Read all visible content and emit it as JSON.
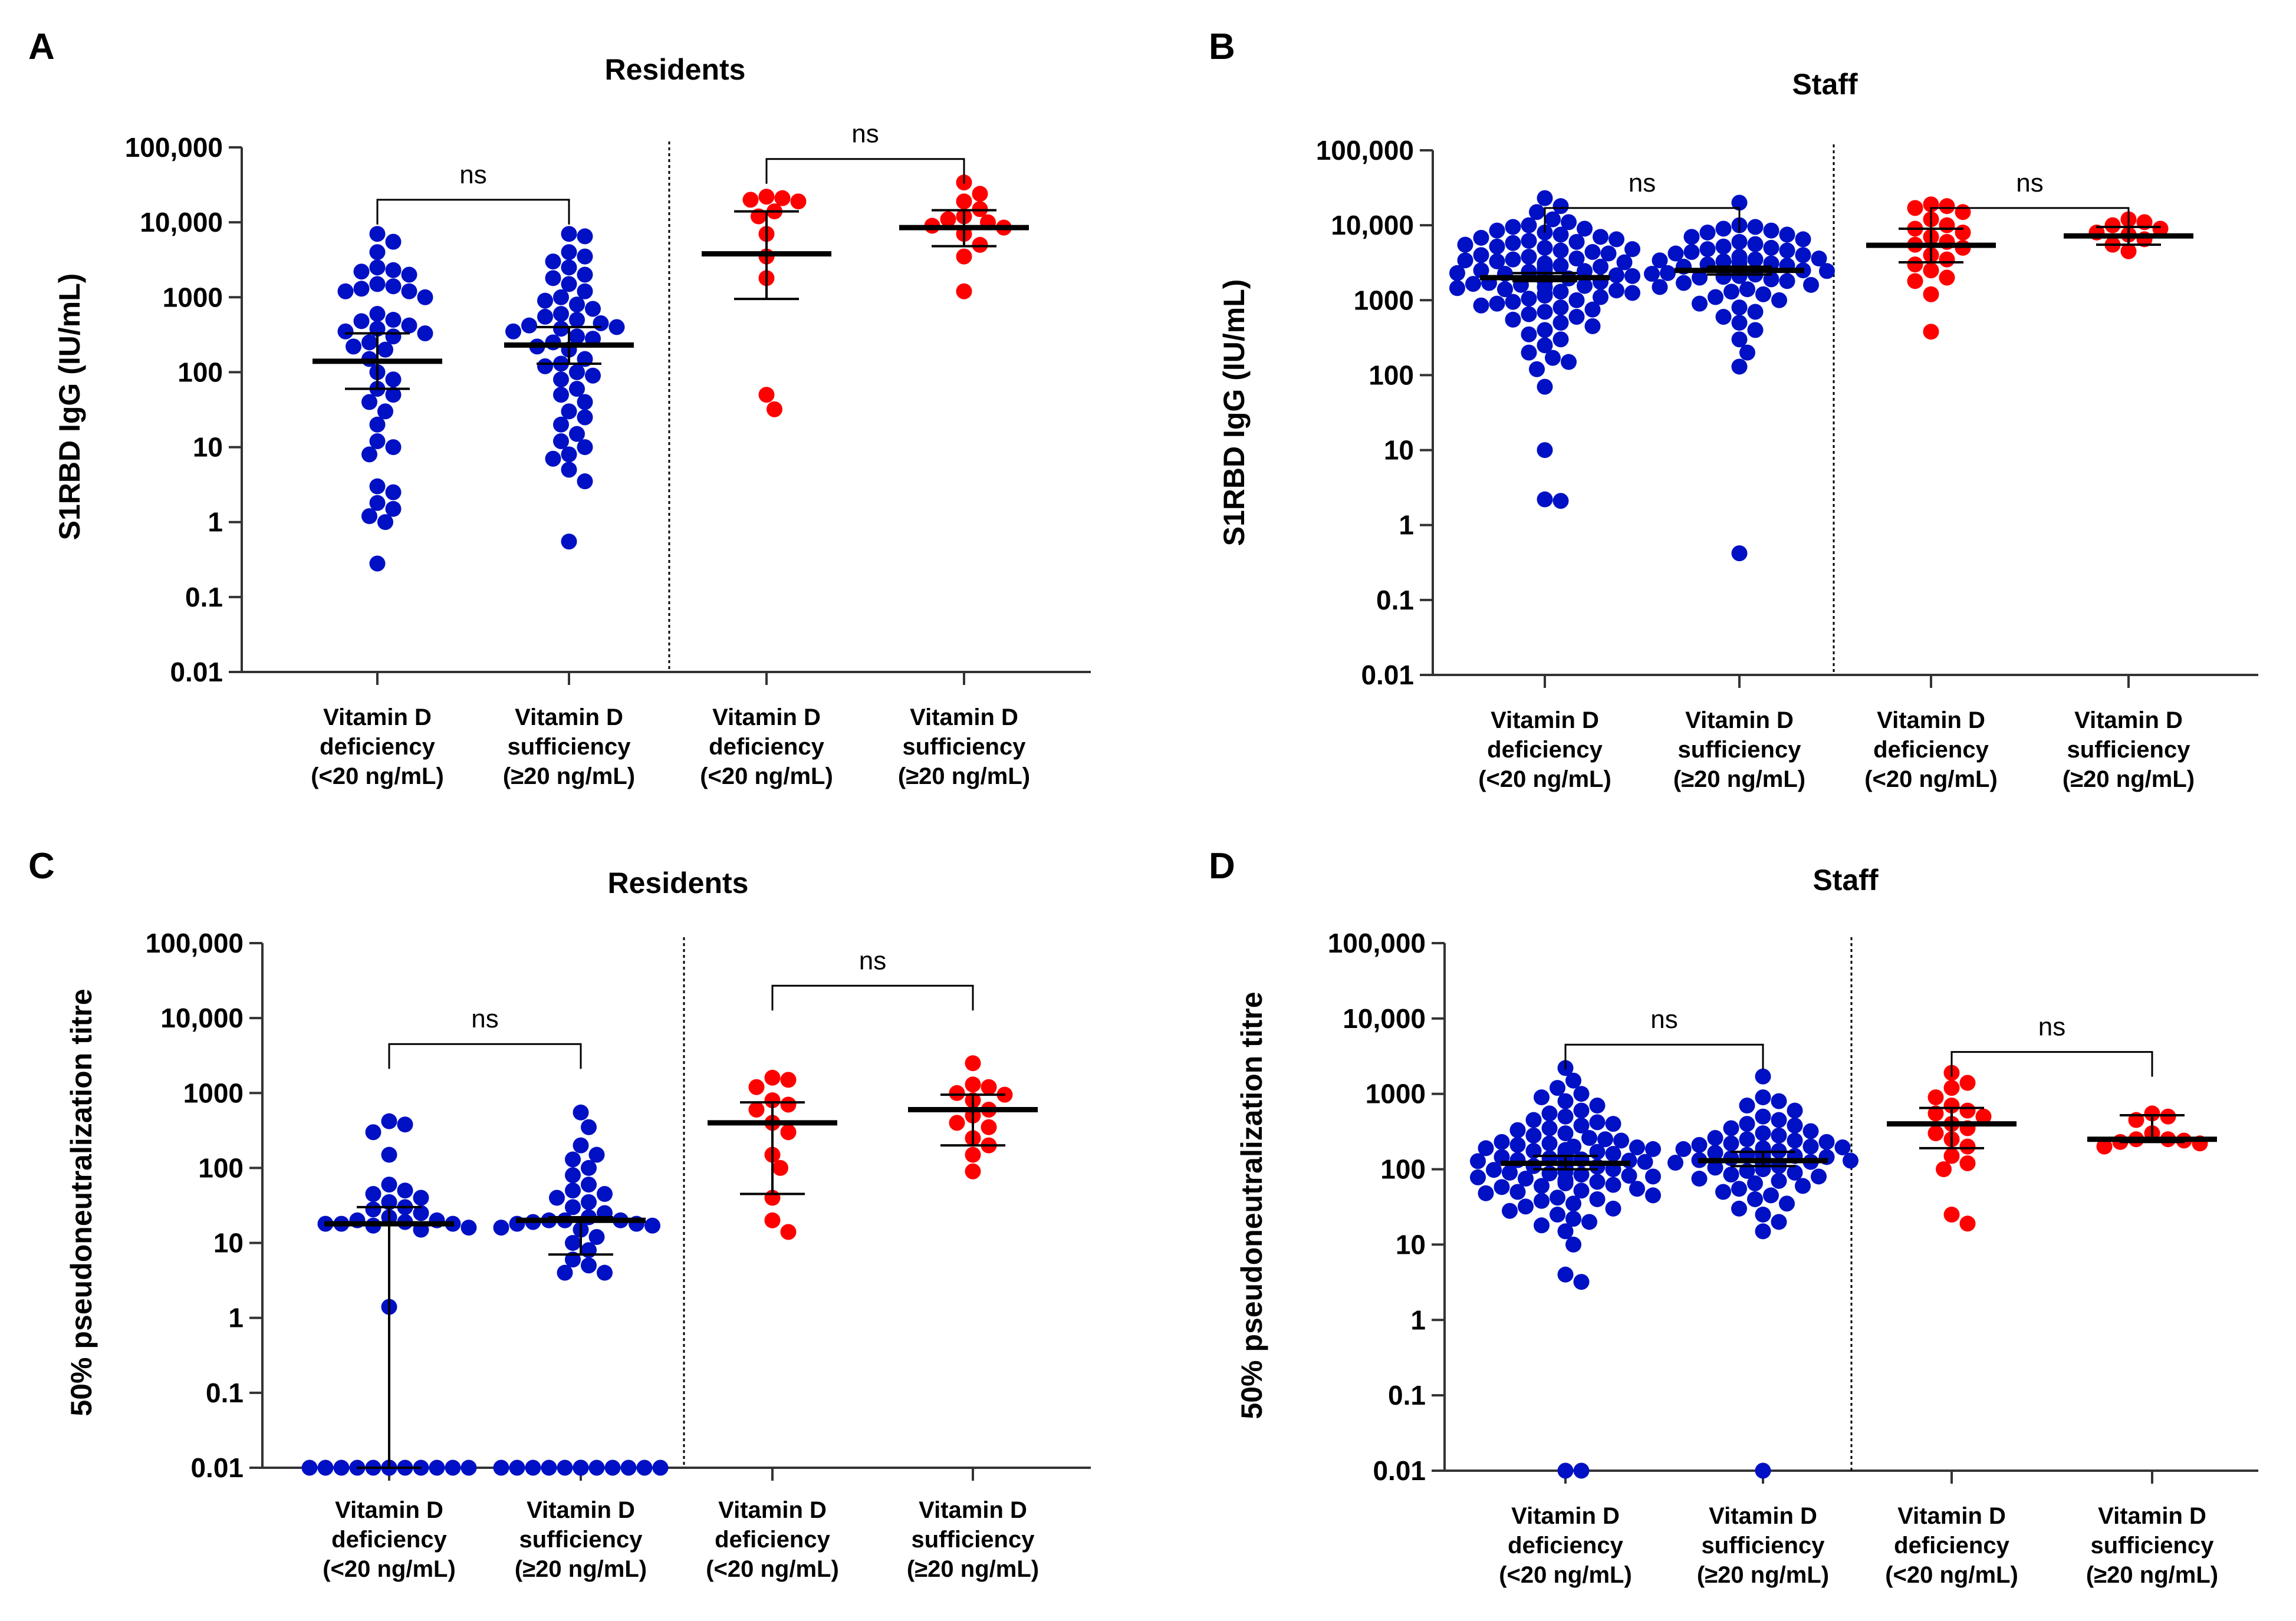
{
  "colors": {
    "blue": "#0010c4",
    "red": "#ff0000",
    "axis": "#333333"
  },
  "chart_data": [
    {
      "label": "A",
      "title": "Residents",
      "type": "scatter",
      "ylabel": "S1RBD IgG (IU/mL)",
      "yscale": "log",
      "ylim": [
        0.01,
        100000
      ],
      "yticks": [
        "0.01",
        "0.1",
        "1",
        "10",
        "100",
        "1000",
        "10,000",
        "100,000"
      ],
      "categories": [
        [
          "Vitamin D",
          "deficiency",
          "(<20 ng/mL)"
        ],
        [
          "Vitamin D",
          "sufficiency",
          "(≥20 ng/mL)"
        ],
        [
          "Vitamin D",
          "deficiency",
          "(<20 ng/mL)"
        ],
        [
          "Vitamin D",
          "sufficiency",
          "(≥20 ng/mL)"
        ]
      ],
      "comparisons": [
        {
          "groups": [
            0,
            1
          ],
          "text": "ns",
          "y": 20000
        },
        {
          "groups": [
            2,
            3
          ],
          "text": "ns",
          "y": 70000
        }
      ],
      "groups": [
        {
          "color": "blue",
          "median": 140,
          "iqr": [
            60,
            330
          ],
          "values": [
            7000,
            5500,
            4000,
            2500,
            2300,
            2200,
            2000,
            1500,
            1400,
            1300,
            1200,
            1200,
            1000,
            600,
            500,
            480,
            420,
            380,
            350,
            330,
            300,
            250,
            220,
            200,
            150,
            100,
            80,
            60,
            50,
            40,
            30,
            20,
            12,
            10,
            8,
            3,
            2.5,
            1.8,
            1.5,
            1.2,
            1,
            0.28
          ]
        },
        {
          "color": "blue",
          "median": 230,
          "iqr": [
            130,
            400
          ],
          "values": [
            7000,
            6500,
            4000,
            3500,
            3000,
            2500,
            2000,
            1800,
            1500,
            1200,
            1000,
            900,
            800,
            700,
            600,
            550,
            500,
            450,
            420,
            400,
            380,
            350,
            300,
            280,
            250,
            220,
            200,
            150,
            130,
            120,
            100,
            90,
            80,
            60,
            50,
            40,
            30,
            25,
            20,
            15,
            12,
            10,
            8,
            7,
            5,
            3.5,
            0.55
          ]
        },
        {
          "color": "red",
          "median": 3800,
          "iqr": [
            950,
            14000
          ],
          "values": [
            22000,
            21000,
            20000,
            19000,
            14000,
            12000,
            7000,
            3500,
            1800,
            50,
            32
          ]
        },
        {
          "color": "red",
          "median": 8500,
          "iqr": [
            4800,
            14500
          ],
          "values": [
            34000,
            24000,
            19000,
            15000,
            12000,
            11000,
            10000,
            9000,
            8500,
            7000,
            5000,
            3500,
            1200
          ]
        }
      ]
    },
    {
      "label": "B",
      "title": "Staff",
      "type": "scatter",
      "ylabel": "S1RBD IgG (IU/mL)",
      "yscale": "log",
      "ylim": [
        0.01,
        100000
      ],
      "yticks": [
        "0.01",
        "0.1",
        "1",
        "10",
        "100",
        "1000",
        "10,000",
        "100,000"
      ],
      "categories": [
        [
          "Vitamin D",
          "deficiency",
          "(<20 ng/mL)"
        ],
        [
          "Vitamin D",
          "sufficiency",
          "(≥20 ng/mL)"
        ],
        [
          "Vitamin D",
          "deficiency",
          "(<20 ng/mL)"
        ],
        [
          "Vitamin D",
          "sufficiency",
          "(≥20 ng/mL)"
        ]
      ],
      "comparisons": [
        {
          "groups": [
            0,
            1
          ],
          "text": "ns",
          "y": 17000
        },
        {
          "groups": [
            2,
            3
          ],
          "text": "ns",
          "y": 17000
        }
      ],
      "groups": [
        {
          "color": "blue",
          "median": 2000,
          "iqr": [
            1800,
            2300
          ],
          "values": [
            23000,
            18000,
            15000,
            12000,
            11000,
            10000,
            9500,
            9000,
            8500,
            8000,
            7500,
            7000,
            6800,
            6500,
            6200,
            6000,
            5800,
            5500,
            5200,
            5000,
            4800,
            4600,
            4400,
            4200,
            4000,
            3800,
            3600,
            3500,
            3400,
            3300,
            3200,
            3100,
            3000,
            2900,
            2800,
            2700,
            2600,
            2500,
            2450,
            2400,
            2350,
            2300,
            2250,
            2200,
            2150,
            2100,
            2050,
            2000,
            2000,
            1950,
            1950,
            1900,
            1900,
            1850,
            1850,
            1800,
            1800,
            1750,
            1700,
            1650,
            1600,
            1550,
            1500,
            1450,
            1400,
            1350,
            1300,
            1250,
            1200,
            1150,
            1100,
            1050,
            1000,
            950,
            900,
            850,
            800,
            750,
            700,
            650,
            600,
            550,
            500,
            450,
            400,
            350,
            300,
            250,
            200,
            170,
            150,
            120,
            70,
            10,
            2.2,
            2.1
          ]
        },
        {
          "color": "blue",
          "median": 2500,
          "iqr": [
            2200,
            2800
          ],
          "values": [
            20000,
            10000,
            9500,
            9000,
            8500,
            8000,
            7500,
            7000,
            6500,
            6000,
            5600,
            5200,
            5000,
            4800,
            4600,
            4400,
            4200,
            4000,
            3800,
            3600,
            3500,
            3400,
            3300,
            3200,
            3100,
            3000,
            2900,
            2800,
            2750,
            2700,
            2650,
            2600,
            2550,
            2500,
            2450,
            2400,
            2350,
            2300,
            2250,
            2200,
            2150,
            2100,
            2050,
            2000,
            1900,
            1800,
            1700,
            1600,
            1500,
            1400,
            1300,
            1200,
            1100,
            1000,
            900,
            800,
            700,
            600,
            500,
            400,
            300,
            200,
            130,
            0.42
          ]
        },
        {
          "color": "red",
          "median": 5400,
          "iqr": [
            3200,
            9000
          ],
          "values": [
            19000,
            18000,
            17000,
            15000,
            12000,
            10000,
            9000,
            8000,
            7000,
            6000,
            5500,
            5000,
            4000,
            3500,
            3000,
            2500,
            2000,
            1800,
            1200,
            380
          ]
        },
        {
          "color": "red",
          "median": 7200,
          "iqr": [
            5500,
            9500
          ],
          "values": [
            12000,
            11000,
            10000,
            9000,
            8000,
            7500,
            6500,
            5500,
            4500
          ]
        }
      ]
    },
    {
      "label": "C",
      "title": "Residents",
      "type": "scatter",
      "ylabel": "50% pseudoneutralization titre",
      "yscale": "log",
      "ylim": [
        0.01,
        100000
      ],
      "yticks": [
        "0.01",
        "0.1",
        "1",
        "10",
        "100",
        "1000",
        "10,000",
        "100,000"
      ],
      "categories": [
        [
          "Vitamin D",
          "deficiency",
          "(<20 ng/mL)"
        ],
        [
          "Vitamin D",
          "sufficiency",
          "(≥20 ng/mL)"
        ],
        [
          "Vitamin D",
          "deficiency",
          "(<20 ng/mL)"
        ],
        [
          "Vitamin D",
          "sufficiency",
          "(≥20 ng/mL)"
        ]
      ],
      "comparisons": [
        {
          "groups": [
            0,
            1
          ],
          "text": "ns",
          "y": 4500
        },
        {
          "groups": [
            2,
            3
          ],
          "text": "ns",
          "y": 27000
        }
      ],
      "groups": [
        {
          "color": "blue",
          "median": 18,
          "iqr": [
            0.01,
            30
          ],
          "values": [
            420,
            380,
            300,
            150,
            60,
            50,
            45,
            40,
            35,
            30,
            28,
            25,
            22,
            20,
            20,
            19,
            18,
            18,
            18,
            17,
            16,
            15,
            1.4,
            0.01,
            0.01,
            0.01,
            0.01,
            0.01,
            0.01,
            0.01,
            0.01,
            0.01,
            0.01,
            0.01,
            0.01,
            0.01,
            0.01,
            0.01,
            0.01
          ]
        },
        {
          "color": "blue",
          "median": 20,
          "iqr": [
            7,
            22
          ],
          "values": [
            550,
            350,
            200,
            150,
            130,
            100,
            80,
            60,
            50,
            45,
            40,
            35,
            30,
            25,
            22,
            20,
            20,
            20,
            19,
            18,
            18,
            17,
            16,
            15,
            12,
            10,
            8,
            6,
            5,
            4,
            4,
            0.01,
            0.01,
            0.01,
            0.01,
            0.01,
            0.01,
            0.01,
            0.01,
            0.01,
            0.01,
            0.01,
            0.01,
            0.01,
            0.01
          ]
        },
        {
          "color": "red",
          "median": 400,
          "iqr": [
            45,
            750
          ],
          "values": [
            1600,
            1500,
            1200,
            800,
            700,
            600,
            400,
            300,
            150,
            100,
            40,
            20,
            14
          ]
        },
        {
          "color": "red",
          "median": 600,
          "iqr": [
            200,
            950
          ],
          "values": [
            2500,
            1300,
            1200,
            1000,
            950,
            800,
            600,
            500,
            400,
            350,
            250,
            200,
            150,
            90
          ]
        }
      ]
    },
    {
      "label": "D",
      "title": "Staff",
      "type": "scatter",
      "ylabel": "50% pseudoneutralization titre",
      "yscale": "log",
      "ylim": [
        0.01,
        100000
      ],
      "yticks": [
        "0.01",
        "0.1",
        "1",
        "10",
        "100",
        "1000",
        "10,000",
        "100,000"
      ],
      "categories": [
        [
          "Vitamin D",
          "deficiency",
          "(<20 ng/mL)"
        ],
        [
          "Vitamin D",
          "sufficiency",
          "(≥20 ng/mL)"
        ],
        [
          "Vitamin D",
          "deficiency",
          "(<20 ng/mL)"
        ],
        [
          "Vitamin D",
          "sufficiency",
          "(≥20 ng/mL)"
        ]
      ],
      "comparisons": [
        {
          "groups": [
            0,
            1
          ],
          "text": "ns",
          "y": 4500
        },
        {
          "groups": [
            2,
            3
          ],
          "text": "ns",
          "y": 3600
        }
      ],
      "groups": [
        {
          "color": "blue",
          "median": 120,
          "iqr": [
            100,
            150
          ],
          "values": [
            2200,
            1500,
            1200,
            1000,
            900,
            800,
            700,
            600,
            550,
            500,
            450,
            420,
            400,
            380,
            350,
            330,
            300,
            280,
            260,
            250,
            240,
            230,
            220,
            210,
            200,
            195,
            190,
            185,
            180,
            175,
            170,
            165,
            160,
            155,
            150,
            148,
            145,
            142,
            140,
            138,
            135,
            132,
            130,
            128,
            125,
            122,
            120,
            120,
            118,
            118,
            115,
            115,
            112,
            110,
            110,
            108,
            105,
            102,
            100,
            98,
            95,
            92,
            90,
            88,
            85,
            82,
            80,
            78,
            75,
            72,
            70,
            68,
            65,
            62,
            60,
            58,
            55,
            52,
            50,
            48,
            45,
            42,
            40,
            38,
            35,
            32,
            30,
            28,
            25,
            22,
            20,
            18,
            15,
            10,
            4,
            3.2,
            0.01,
            0.01
          ]
        },
        {
          "color": "blue",
          "median": 130,
          "iqr": [
            110,
            170
          ],
          "values": [
            1700,
            900,
            800,
            700,
            600,
            500,
            450,
            400,
            380,
            350,
            320,
            300,
            280,
            260,
            250,
            240,
            230,
            220,
            210,
            200,
            195,
            190,
            185,
            180,
            175,
            170,
            165,
            160,
            155,
            150,
            148,
            145,
            142,
            140,
            138,
            135,
            132,
            130,
            128,
            125,
            122,
            120,
            118,
            115,
            112,
            110,
            108,
            105,
            100,
            95,
            90,
            85,
            80,
            75,
            70,
            65,
            60,
            55,
            50,
            45,
            40,
            35,
            30,
            25,
            20,
            15,
            0.01
          ]
        },
        {
          "color": "red",
          "median": 400,
          "iqr": [
            190,
            650
          ],
          "values": [
            1900,
            1400,
            1200,
            900,
            700,
            600,
            550,
            500,
            400,
            350,
            300,
            250,
            200,
            150,
            120,
            100,
            25,
            19
          ]
        },
        {
          "color": "red",
          "median": 250,
          "iqr": [
            230,
            520
          ],
          "values": [
            550,
            500,
            450,
            300,
            250,
            250,
            240,
            230,
            220,
            200
          ]
        }
      ]
    }
  ]
}
